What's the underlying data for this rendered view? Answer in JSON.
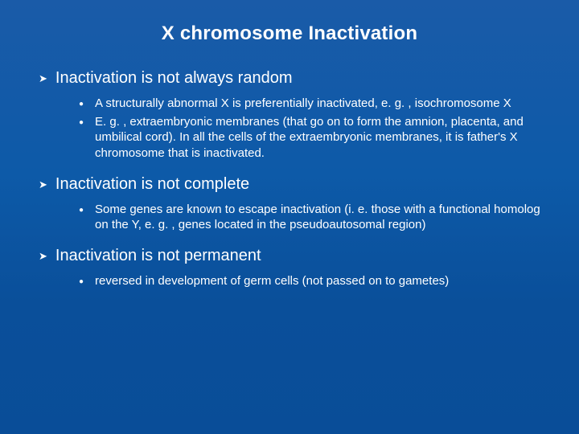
{
  "slide": {
    "title": "X chromosome Inactivation",
    "background_gradient": [
      "#1a5ba8",
      "#0d5aa8",
      "#0a4f9a",
      "#094d98"
    ],
    "text_color": "#ffffff",
    "title_fontsize": 24,
    "level1_fontsize": 20,
    "level2_fontsize": 15,
    "bullets": [
      {
        "text": "Inactivation is not always random",
        "sub": [
          "A structurally abnormal X is preferentially inactivated, e. g. , isochromosome X",
          "E. g. , extraembryonic membranes (that go on to form the amnion, placenta, and umbilical cord). In all the cells of the extraembryonic membranes, it is father's X chromosome that is inactivated."
        ]
      },
      {
        "text": "Inactivation is not complete",
        "sub": [
          "Some genes are known to escape inactivation (i. e. those with a functional homolog on the Y, e. g. , genes located in the pseudoautosomal region)"
        ]
      },
      {
        "text": "Inactivation is not permanent",
        "sub": [
          "reversed in development of germ cells (not passed on to gametes)"
        ]
      }
    ]
  }
}
